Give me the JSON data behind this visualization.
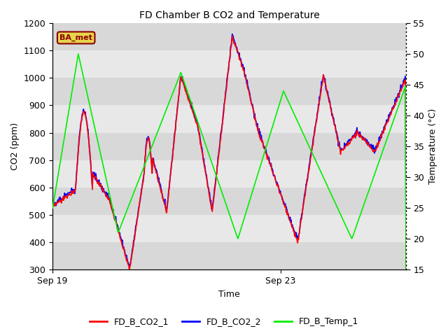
{
  "title": "FD Chamber B CO2 and Temperature",
  "xlabel": "Time",
  "ylabel_left": "CO2 (ppm)",
  "ylabel_right": "Temperature (°C)",
  "ylim_left": [
    300,
    1200
  ],
  "ylim_right": [
    15,
    55
  ],
  "yticks_left": [
    300,
    400,
    500,
    600,
    700,
    800,
    900,
    1000,
    1100,
    1200
  ],
  "yticks_right": [
    15,
    20,
    25,
    30,
    35,
    40,
    45,
    50,
    55
  ],
  "xtick_positions": [
    0,
    4
  ],
  "xtick_labels": [
    "Sep 19",
    "Sep 23"
  ],
  "xlim": [
    0,
    6.2
  ],
  "bg_strip_color": "#d8d8d8",
  "bg_white_color": "#ebebeb",
  "co2_1_color": "red",
  "co2_2_color": "blue",
  "temp_color": "#00ee00",
  "legend_label_1": "FD_B_CO2_1",
  "legend_label_2": "FD_B_CO2_2",
  "legend_label_3": "FD_B_Temp_1",
  "annotation_text": "BA_met",
  "annotation_color": "#8B0000",
  "annotation_bg": "#e8d44d",
  "linewidth": 1.2
}
